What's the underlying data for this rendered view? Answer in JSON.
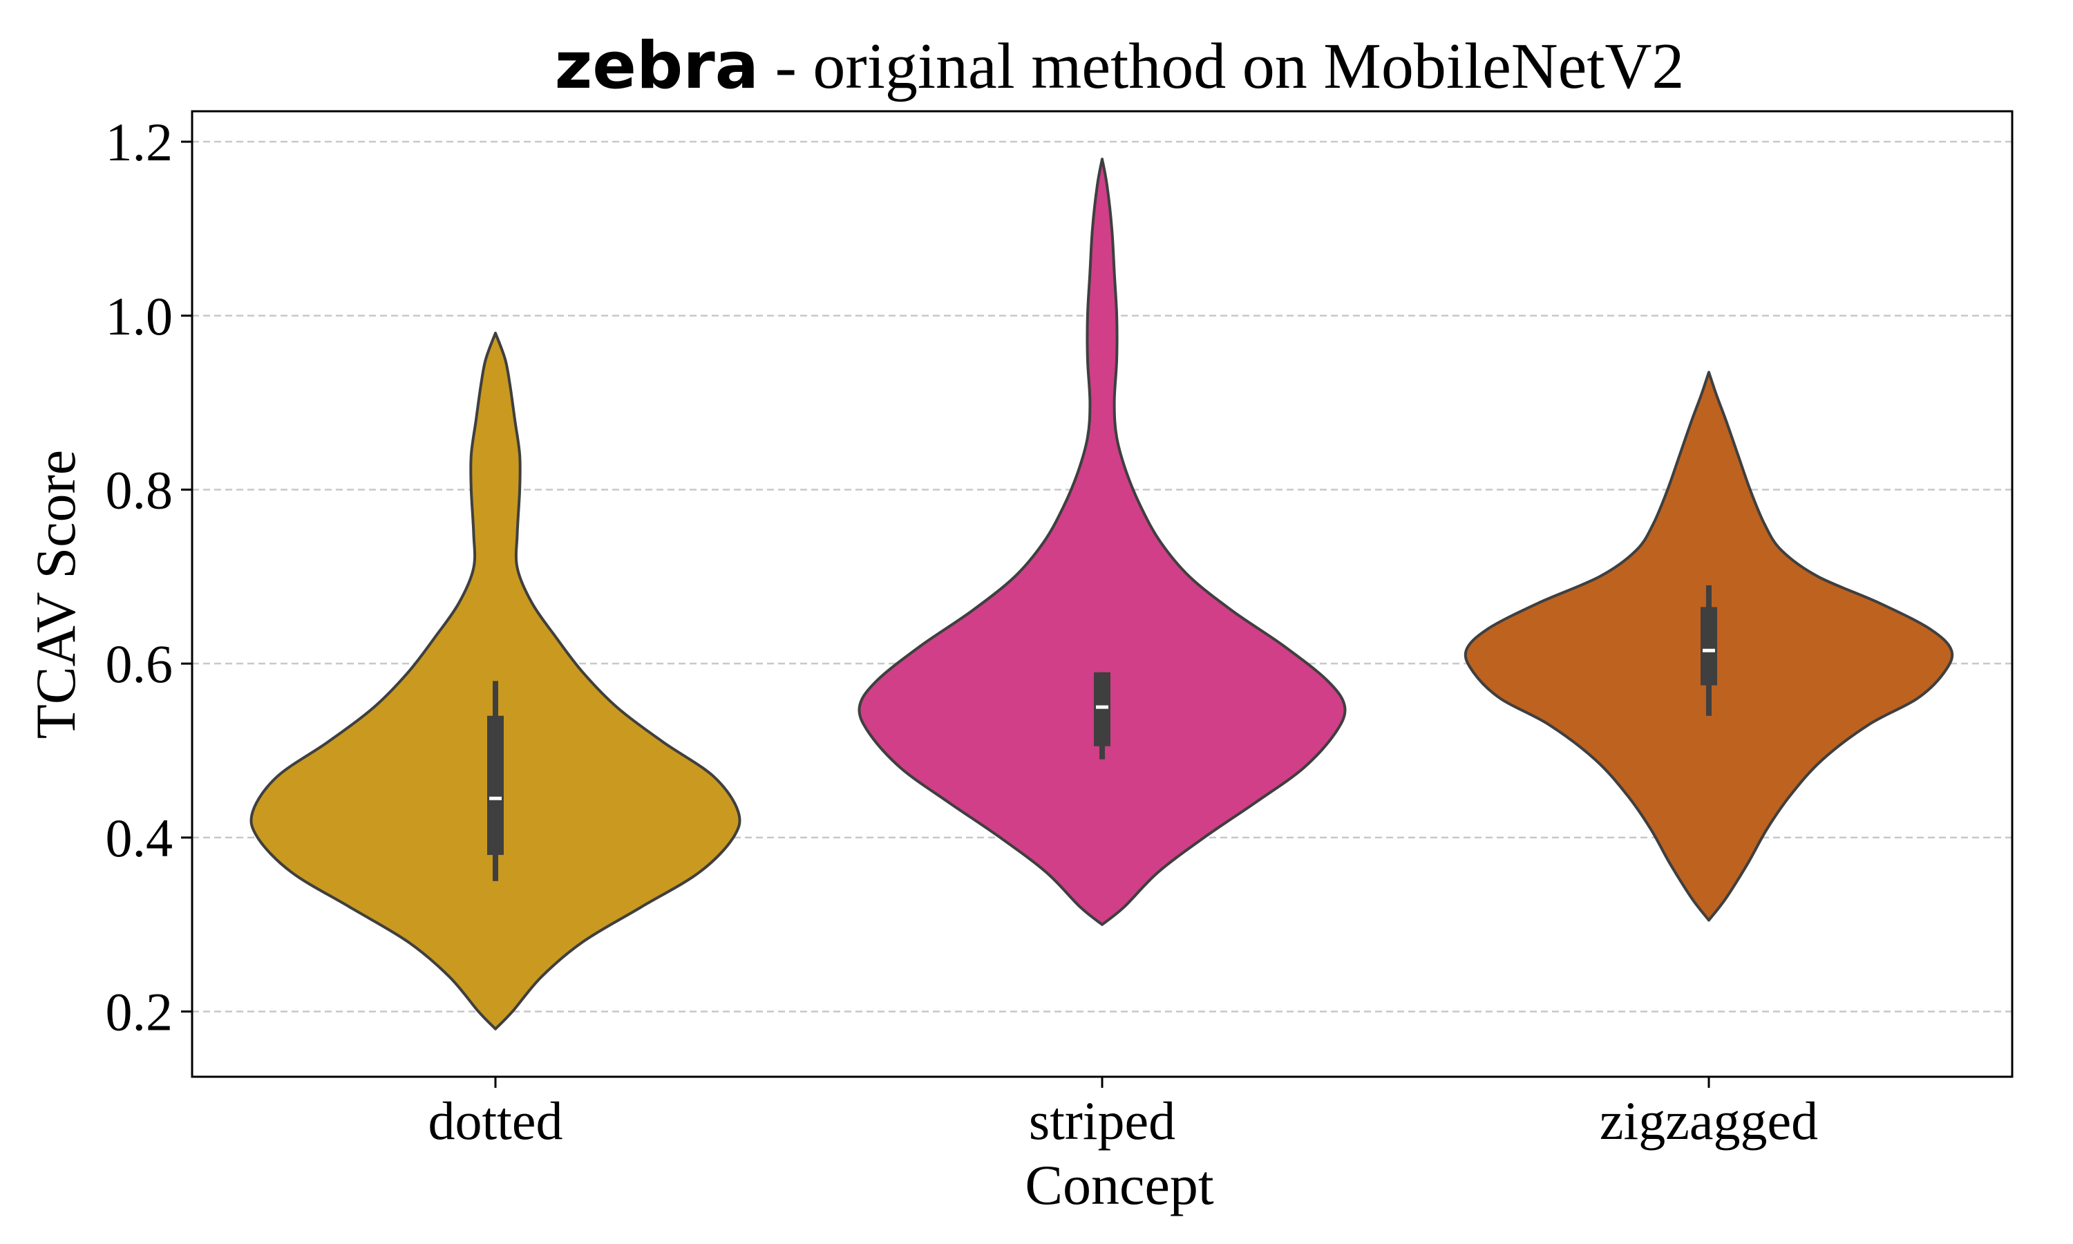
{
  "title": {
    "bold_part": "zebra",
    "rest": " - original method on MobileNetV2"
  },
  "colors": {
    "dotted": "#C99A1F",
    "striped": "#D03F88",
    "zigzagged": "#BE621F",
    "outline": "#3f3f3f",
    "grid": "#c8c8c8",
    "box": "#3f3f3f",
    "median": "#ffffff"
  },
  "chart_data": {
    "type": "violin",
    "title": "zebra - original method on MobileNetV2",
    "xlabel": "Concept",
    "ylabel": "TCAV Score",
    "ylim": [
      0.125,
      1.235
    ],
    "yticks": [
      0.2,
      0.4,
      0.6,
      0.8,
      1.0,
      1.2
    ],
    "ytick_labels": [
      "0.2",
      "0.4",
      "0.6",
      "0.8",
      "1.0",
      "1.2"
    ],
    "grid": "horizontal dashed",
    "categories": [
      "dotted",
      "striped",
      "zigzagged"
    ],
    "series": [
      {
        "category": "dotted",
        "color": "#C99A1F",
        "min": 0.18,
        "max": 0.98,
        "whisker_low": 0.35,
        "whisker_high": 0.58,
        "q1": 0.38,
        "median": 0.445,
        "q3": 0.54,
        "density": [
          [
            0.18,
            0.0
          ],
          [
            0.2,
            0.07
          ],
          [
            0.24,
            0.19
          ],
          [
            0.28,
            0.36
          ],
          [
            0.32,
            0.6
          ],
          [
            0.36,
            0.84
          ],
          [
            0.4,
            0.98
          ],
          [
            0.43,
            1.0
          ],
          [
            0.47,
            0.9
          ],
          [
            0.51,
            0.69
          ],
          [
            0.55,
            0.5
          ],
          [
            0.59,
            0.36
          ],
          [
            0.63,
            0.25
          ],
          [
            0.67,
            0.15
          ],
          [
            0.71,
            0.09
          ],
          [
            0.75,
            0.09
          ],
          [
            0.8,
            0.1
          ],
          [
            0.84,
            0.1
          ],
          [
            0.88,
            0.08
          ],
          [
            0.92,
            0.06
          ],
          [
            0.95,
            0.04
          ],
          [
            0.98,
            0.0
          ]
        ]
      },
      {
        "category": "striped",
        "color": "#D03F88",
        "min": 0.3,
        "max": 1.18,
        "whisker_low": 0.49,
        "whisker_high": 0.59,
        "q1": 0.505,
        "median": 0.55,
        "q3": 0.59,
        "density": [
          [
            0.3,
            0.0
          ],
          [
            0.32,
            0.09
          ],
          [
            0.36,
            0.23
          ],
          [
            0.4,
            0.42
          ],
          [
            0.44,
            0.63
          ],
          [
            0.48,
            0.83
          ],
          [
            0.52,
            0.96
          ],
          [
            0.55,
            1.0
          ],
          [
            0.58,
            0.93
          ],
          [
            0.62,
            0.75
          ],
          [
            0.66,
            0.54
          ],
          [
            0.7,
            0.36
          ],
          [
            0.74,
            0.24
          ],
          [
            0.78,
            0.16
          ],
          [
            0.82,
            0.1
          ],
          [
            0.86,
            0.06
          ],
          [
            0.9,
            0.05
          ],
          [
            0.95,
            0.06
          ],
          [
            1.0,
            0.06
          ],
          [
            1.05,
            0.05
          ],
          [
            1.1,
            0.04
          ],
          [
            1.15,
            0.02
          ],
          [
            1.18,
            0.0
          ]
        ]
      },
      {
        "category": "zigzagged",
        "color": "#BE621F",
        "min": 0.305,
        "max": 0.935,
        "whisker_low": 0.54,
        "whisker_high": 0.69,
        "q1": 0.575,
        "median": 0.615,
        "q3": 0.665,
        "density": [
          [
            0.305,
            0.0
          ],
          [
            0.33,
            0.07
          ],
          [
            0.37,
            0.16
          ],
          [
            0.41,
            0.24
          ],
          [
            0.45,
            0.34
          ],
          [
            0.49,
            0.47
          ],
          [
            0.53,
            0.66
          ],
          [
            0.56,
            0.86
          ],
          [
            0.59,
            0.97
          ],
          [
            0.615,
            1.0
          ],
          [
            0.64,
            0.91
          ],
          [
            0.67,
            0.7
          ],
          [
            0.7,
            0.45
          ],
          [
            0.73,
            0.3
          ],
          [
            0.76,
            0.23
          ],
          [
            0.8,
            0.17
          ],
          [
            0.84,
            0.12
          ],
          [
            0.88,
            0.07
          ],
          [
            0.91,
            0.03
          ],
          [
            0.935,
            0.0
          ]
        ]
      }
    ]
  }
}
